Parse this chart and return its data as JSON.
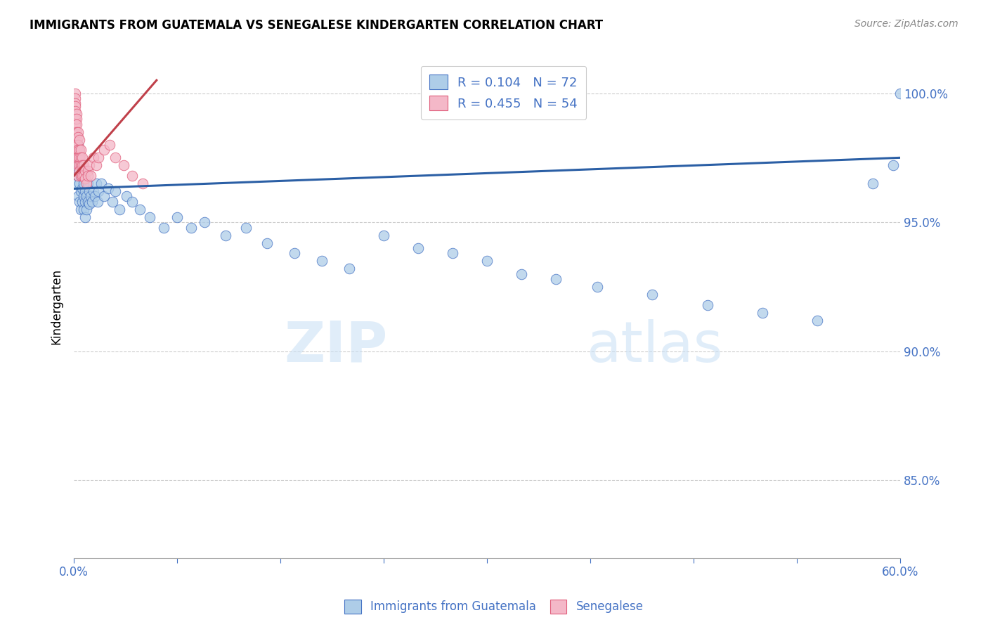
{
  "title": "IMMIGRANTS FROM GUATEMALA VS SENEGALESE KINDERGARTEN CORRELATION CHART",
  "source": "Source: ZipAtlas.com",
  "ylabel": "Kindergarten",
  "x_min": 0.0,
  "x_max": 0.6,
  "y_min": 0.82,
  "y_max": 1.015,
  "x_ticks": [
    0.0,
    0.075,
    0.15,
    0.225,
    0.3,
    0.375,
    0.45,
    0.525,
    0.6
  ],
  "x_tick_labels_show": [
    "0.0%",
    "",
    "",
    "",
    "",
    "",
    "",
    "",
    "60.0%"
  ],
  "y_ticks": [
    0.85,
    0.9,
    0.95,
    1.0
  ],
  "y_tick_labels": [
    "85.0%",
    "90.0%",
    "95.0%",
    "100.0%"
  ],
  "blue_color": "#aecde8",
  "pink_color": "#f4b8c8",
  "blue_edge_color": "#4472c4",
  "pink_edge_color": "#e05c7a",
  "blue_line_color": "#2b5fa5",
  "pink_line_color": "#c0404a",
  "grid_color": "#cccccc",
  "blue_trend_x": [
    0.0,
    0.6
  ],
  "blue_trend_y": [
    0.963,
    0.975
  ],
  "pink_trend_x": [
    0.0,
    0.06
  ],
  "pink_trend_y": [
    0.968,
    1.005
  ],
  "blue_x": [
    0.001,
    0.001,
    0.002,
    0.002,
    0.002,
    0.003,
    0.003,
    0.003,
    0.004,
    0.004,
    0.004,
    0.004,
    0.005,
    0.005,
    0.005,
    0.005,
    0.006,
    0.006,
    0.006,
    0.007,
    0.007,
    0.007,
    0.008,
    0.008,
    0.008,
    0.009,
    0.009,
    0.01,
    0.01,
    0.011,
    0.011,
    0.012,
    0.013,
    0.014,
    0.015,
    0.016,
    0.017,
    0.018,
    0.02,
    0.022,
    0.025,
    0.028,
    0.03,
    0.033,
    0.038,
    0.042,
    0.048,
    0.055,
    0.065,
    0.075,
    0.085,
    0.095,
    0.11,
    0.125,
    0.14,
    0.16,
    0.18,
    0.2,
    0.225,
    0.25,
    0.275,
    0.3,
    0.325,
    0.35,
    0.38,
    0.42,
    0.46,
    0.5,
    0.54,
    0.58,
    0.595,
    0.6
  ],
  "blue_y": [
    0.975,
    0.972,
    0.978,
    0.97,
    0.965,
    0.98,
    0.968,
    0.96,
    0.975,
    0.97,
    0.965,
    0.958,
    0.972,
    0.968,
    0.962,
    0.955,
    0.968,
    0.963,
    0.958,
    0.965,
    0.96,
    0.955,
    0.962,
    0.958,
    0.952,
    0.96,
    0.955,
    0.965,
    0.958,
    0.962,
    0.957,
    0.96,
    0.958,
    0.962,
    0.96,
    0.965,
    0.958,
    0.962,
    0.965,
    0.96,
    0.963,
    0.958,
    0.962,
    0.955,
    0.96,
    0.958,
    0.955,
    0.952,
    0.948,
    0.952,
    0.948,
    0.95,
    0.945,
    0.948,
    0.942,
    0.938,
    0.935,
    0.932,
    0.945,
    0.94,
    0.938,
    0.935,
    0.93,
    0.928,
    0.925,
    0.922,
    0.918,
    0.915,
    0.912,
    0.965,
    0.972,
    1.0
  ],
  "pink_x": [
    0.001,
    0.001,
    0.001,
    0.001,
    0.001,
    0.001,
    0.001,
    0.001,
    0.001,
    0.002,
    0.002,
    0.002,
    0.002,
    0.002,
    0.002,
    0.002,
    0.002,
    0.003,
    0.003,
    0.003,
    0.003,
    0.003,
    0.003,
    0.003,
    0.004,
    0.004,
    0.004,
    0.004,
    0.004,
    0.005,
    0.005,
    0.005,
    0.005,
    0.006,
    0.006,
    0.006,
    0.007,
    0.007,
    0.008,
    0.008,
    0.009,
    0.01,
    0.01,
    0.011,
    0.012,
    0.014,
    0.016,
    0.018,
    0.022,
    0.026,
    0.03,
    0.036,
    0.042,
    0.05
  ],
  "pink_y": [
    1.0,
    0.998,
    0.996,
    0.995,
    0.993,
    0.99,
    0.988,
    0.985,
    0.982,
    0.992,
    0.99,
    0.988,
    0.985,
    0.982,
    0.98,
    0.978,
    0.975,
    0.985,
    0.983,
    0.98,
    0.978,
    0.975,
    0.972,
    0.968,
    0.982,
    0.978,
    0.975,
    0.972,
    0.97,
    0.978,
    0.975,
    0.972,
    0.968,
    0.975,
    0.972,
    0.968,
    0.972,
    0.968,
    0.97,
    0.967,
    0.965,
    0.97,
    0.968,
    0.972,
    0.968,
    0.975,
    0.972,
    0.975,
    0.978,
    0.98,
    0.975,
    0.972,
    0.968,
    0.965
  ],
  "legend_entries": [
    {
      "label": "R = 0.104   N = 72",
      "facecolor": "#aecde8",
      "edgecolor": "#4472c4"
    },
    {
      "label": "R = 0.455   N = 54",
      "facecolor": "#f4b8c8",
      "edgecolor": "#e05c7a"
    }
  ],
  "legend_bottom_entries": [
    {
      "label": "Immigrants from Guatemala",
      "facecolor": "#aecde8",
      "edgecolor": "#4472c4"
    },
    {
      "label": "Senegalese",
      "facecolor": "#f4b8c8",
      "edgecolor": "#e05c7a"
    }
  ]
}
